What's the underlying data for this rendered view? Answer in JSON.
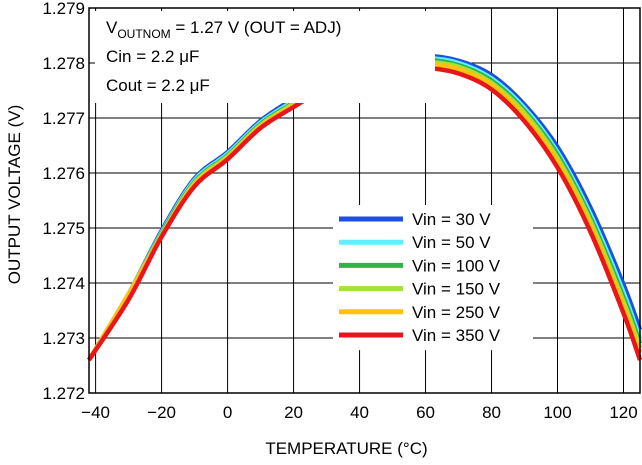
{
  "chart_data": {
    "type": "line",
    "title": "",
    "xlabel": "TEMPERATURE (°C)",
    "ylabel": "OUTPUT VOLTAGE (V)",
    "xlim": [
      -42,
      125
    ],
    "ylim": [
      1.272,
      1.279
    ],
    "x_ticks": [
      -40,
      -20,
      0,
      20,
      40,
      60,
      80,
      100,
      120
    ],
    "x_tick_labels": [
      "−40",
      "−20",
      "0",
      "20",
      "40",
      "60",
      "80",
      "100",
      "120"
    ],
    "y_ticks": [
      1.272,
      1.273,
      1.274,
      1.275,
      1.276,
      1.277,
      1.278,
      1.279
    ],
    "y_tick_labels": [
      "1.272",
      "1.273",
      "1.274",
      "1.275",
      "1.276",
      "1.277",
      "1.278",
      "1.279"
    ],
    "grid": true,
    "legend_position": "lower-right",
    "annotations": {
      "line1_prefix": "V",
      "line1_sub": "OUTNOM",
      "line1_rest": " = 1.27 V (OUT = ADJ)",
      "line2": "Cin = 2.2 μF",
      "line3": "Cout = 2.2 μF"
    },
    "x": [
      -42,
      -30,
      -20,
      -10,
      0,
      10,
      20,
      30,
      40,
      50,
      60,
      70,
      80,
      90,
      100,
      110,
      120,
      125
    ],
    "series": [
      {
        "name": "Vin = 30 V",
        "color": "#1f4fe0",
        "values": [
          1.2726,
          1.2738,
          1.27495,
          1.2759,
          1.27638,
          1.27695,
          1.27735,
          1.27772,
          1.27797,
          1.27808,
          1.27813,
          1.27804,
          1.27778,
          1.27724,
          1.27647,
          1.27537,
          1.27397,
          1.27315
        ]
      },
      {
        "name": "Vin = 50 V",
        "color": "#5ff0ff",
        "values": [
          1.2726,
          1.2738,
          1.27492,
          1.27587,
          1.27635,
          1.27692,
          1.27731,
          1.27769,
          1.27793,
          1.27804,
          1.27809,
          1.278,
          1.27772,
          1.27718,
          1.27638,
          1.27525,
          1.27383,
          1.27298
        ]
      },
      {
        "name": "Vin = 100 V",
        "color": "#2fb34a",
        "values": [
          1.2726,
          1.2738,
          1.2749,
          1.27584,
          1.27632,
          1.27689,
          1.27728,
          1.27766,
          1.2779,
          1.27801,
          1.27806,
          1.27796,
          1.27768,
          1.27713,
          1.27633,
          1.27518,
          1.27374,
          1.2729
        ]
      },
      {
        "name": "Vin = 150 V",
        "color": "#a2e23a",
        "values": [
          1.2726,
          1.2738,
          1.27488,
          1.27582,
          1.2763,
          1.27687,
          1.27726,
          1.27763,
          1.27787,
          1.27798,
          1.27802,
          1.27793,
          1.27764,
          1.27709,
          1.27627,
          1.27512,
          1.27366,
          1.27282
        ]
      },
      {
        "name": "Vin = 250 V",
        "color": "#ffc20e",
        "values": [
          1.2726,
          1.2738,
          1.27486,
          1.2758,
          1.27628,
          1.27685,
          1.27723,
          1.2776,
          1.27784,
          1.27795,
          1.27799,
          1.27789,
          1.2776,
          1.27703,
          1.27621,
          1.27505,
          1.27358,
          1.27274
        ]
      },
      {
        "name": "Vin = 350 V",
        "color": "#e8161b",
        "values": [
          1.2726,
          1.2737,
          1.27484,
          1.27576,
          1.27625,
          1.27682,
          1.2772,
          1.27755,
          1.27778,
          1.27788,
          1.27791,
          1.27781,
          1.27752,
          1.27694,
          1.2761,
          1.27493,
          1.27345,
          1.2726
        ]
      }
    ]
  }
}
